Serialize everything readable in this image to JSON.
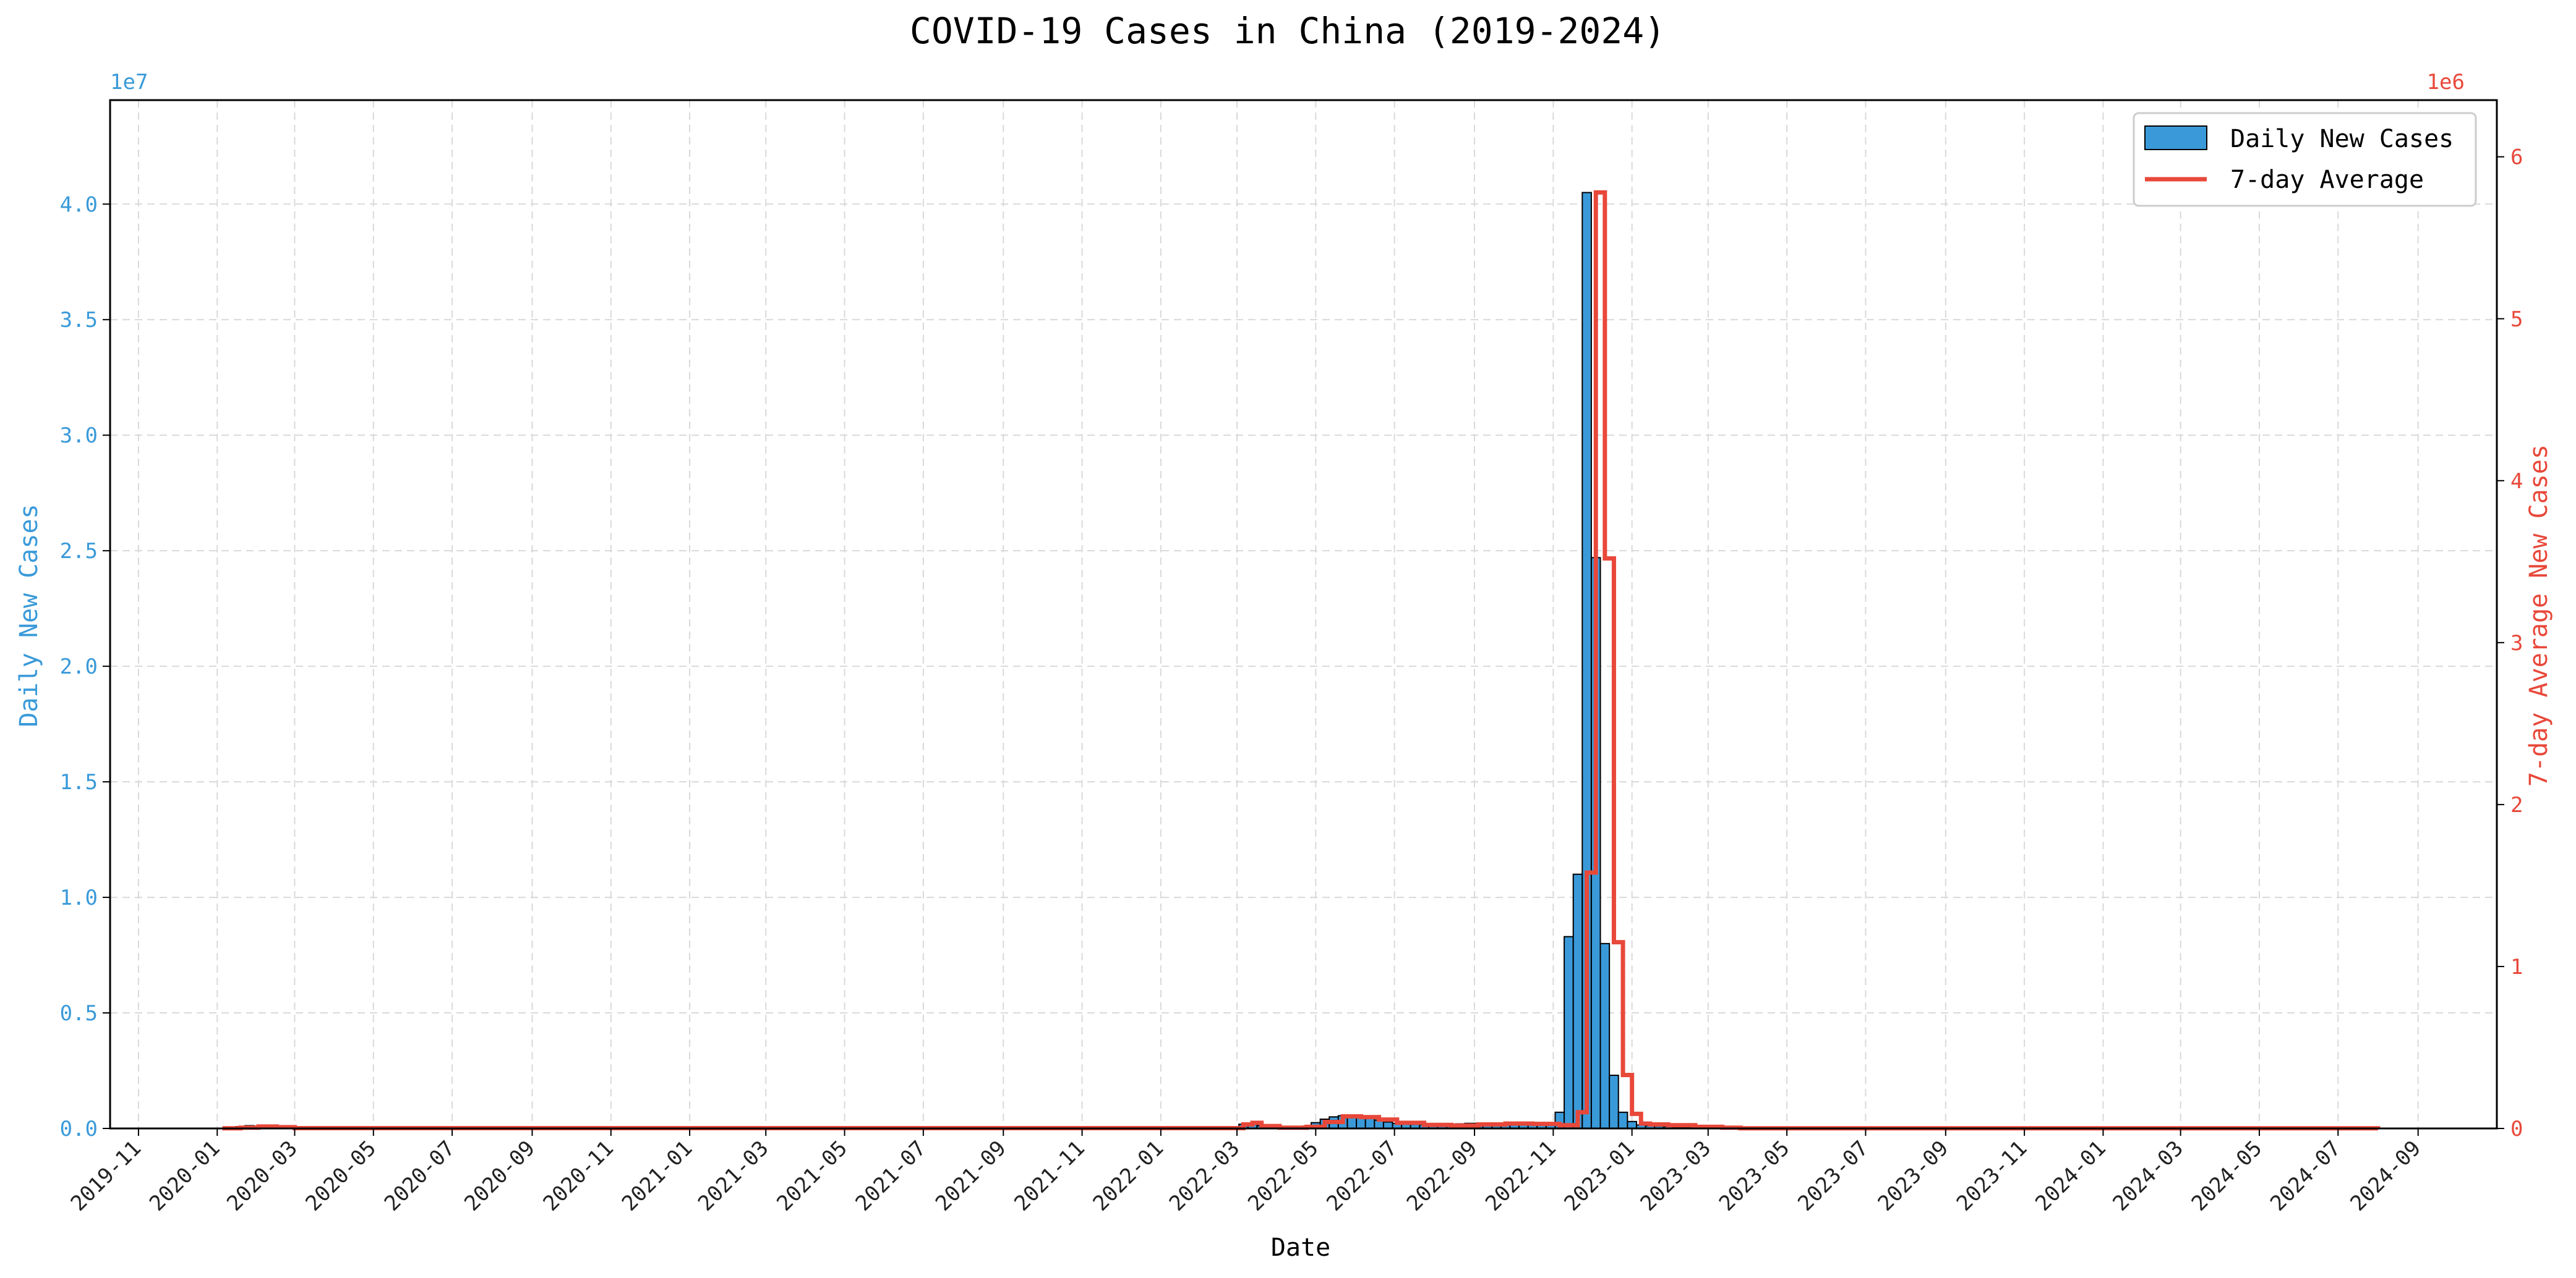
{
  "chart_data": {
    "type": "bar",
    "title": "COVID-19 Cases in China (2019-2024)",
    "xlabel": "Date",
    "ylabel_left": "Daily New Cases",
    "ylabel_right": "7-day Average New Cases",
    "left_multiplier": "1e7",
    "right_multiplier": "1e6",
    "xlim": [
      "2019-10-10",
      "2024-11-01"
    ],
    "ylim_left": [
      0,
      4.45
    ],
    "ylim_right": [
      0,
      6.35
    ],
    "x_ticks": [
      "2019-11",
      "2020-01",
      "2020-03",
      "2020-05",
      "2020-07",
      "2020-09",
      "2020-11",
      "2021-01",
      "2021-03",
      "2021-05",
      "2021-07",
      "2021-09",
      "2021-11",
      "2022-01",
      "2022-03",
      "2022-05",
      "2022-07",
      "2022-09",
      "2022-11",
      "2023-01",
      "2023-03",
      "2023-05",
      "2023-07",
      "2023-09",
      "2023-11",
      "2024-01",
      "2024-03",
      "2024-05",
      "2024-07",
      "2024-09"
    ],
    "y_ticks_left": [
      "0.0",
      "0.5",
      "1.0",
      "1.5",
      "2.0",
      "2.5",
      "3.0",
      "3.5",
      "4.0"
    ],
    "y_ticks_right": [
      "0",
      "1",
      "2",
      "3",
      "4",
      "5",
      "6"
    ],
    "grid": true,
    "legend_position": "top-right",
    "colors": {
      "bars": "#3a9ad9",
      "bar_edge": "#000000",
      "average": "#e8483a",
      "left_axis": "#3a9ad9",
      "right_axis": "#e8483a",
      "grid": "#d9d9d9"
    },
    "series": [
      {
        "name": "Daily New Cases",
        "kind": "bar",
        "axis": "left",
        "unit_scale": "1e7",
        "x": [
          "2020-01-05",
          "2020-01-12",
          "2020-01-19",
          "2020-01-26",
          "2020-02-02",
          "2020-02-09",
          "2020-02-16",
          "2020-02-23",
          "2022-03-06",
          "2022-03-13",
          "2022-03-20",
          "2022-03-27",
          "2022-04-03",
          "2022-04-10",
          "2022-04-17",
          "2022-04-24",
          "2022-05-01",
          "2022-05-08",
          "2022-05-15",
          "2022-05-22",
          "2022-05-29",
          "2022-06-05",
          "2022-06-12",
          "2022-06-19",
          "2022-06-26",
          "2022-07-03",
          "2022-07-10",
          "2022-07-17",
          "2022-07-24",
          "2022-07-31",
          "2022-08-07",
          "2022-08-14",
          "2022-08-21",
          "2022-08-28",
          "2022-09-04",
          "2022-09-11",
          "2022-09-18",
          "2022-09-25",
          "2022-10-02",
          "2022-10-09",
          "2022-10-16",
          "2022-10-23",
          "2022-10-30",
          "2022-11-06",
          "2022-11-13",
          "2022-11-20",
          "2022-11-27",
          "2022-12-04",
          "2022-12-11",
          "2022-12-18",
          "2022-12-25",
          "2023-01-01",
          "2023-01-08",
          "2023-01-15",
          "2023-01-22",
          "2023-01-29",
          "2023-02-05",
          "2023-02-12",
          "2023-02-19",
          "2023-02-26",
          "2023-03-05",
          "2023-03-12",
          "2023-03-19",
          "2023-03-26"
        ],
        "values": [
          0.001,
          0.003,
          0.008,
          0.012,
          0.01,
          0.006,
          0.003,
          0.001,
          0.018,
          0.022,
          0.012,
          0.006,
          0.004,
          0.003,
          0.003,
          0.01,
          0.025,
          0.04,
          0.05,
          0.055,
          0.055,
          0.05,
          0.045,
          0.036,
          0.028,
          0.022,
          0.02,
          0.018,
          0.016,
          0.016,
          0.015,
          0.018,
          0.02,
          0.022,
          0.022,
          0.022,
          0.024,
          0.024,
          0.022,
          0.02,
          0.018,
          0.016,
          0.016,
          0.07,
          0.83,
          1.1,
          4.05,
          2.47,
          0.8,
          0.23,
          0.07,
          0.03,
          0.015,
          0.012,
          0.01,
          0.008,
          0.006,
          0.004,
          0.002,
          0.001,
          0.001,
          0.001,
          0.0,
          0.0
        ]
      },
      {
        "name": "7-day Average",
        "kind": "step-line",
        "axis": "right",
        "unit_scale": "1e6",
        "x": [
          "2020-01-05",
          "2020-01-19",
          "2020-02-02",
          "2020-02-16",
          "2020-03-01",
          "2022-02-27",
          "2022-03-06",
          "2022-03-13",
          "2022-03-20",
          "2022-04-03",
          "2022-04-24",
          "2022-05-08",
          "2022-05-22",
          "2022-06-05",
          "2022-06-19",
          "2022-07-03",
          "2022-07-24",
          "2022-08-14",
          "2022-09-04",
          "2022-09-25",
          "2022-10-16",
          "2022-11-06",
          "2022-11-20",
          "2022-11-27",
          "2022-12-04",
          "2022-12-11",
          "2022-12-18",
          "2022-12-25",
          "2023-01-01",
          "2023-01-08",
          "2023-01-15",
          "2023-01-29",
          "2023-02-19",
          "2023-03-12",
          "2023-03-26",
          "2024-08-01"
        ],
        "values": [
          0.001,
          0.005,
          0.012,
          0.008,
          0.002,
          0.002,
          0.025,
          0.035,
          0.015,
          0.005,
          0.01,
          0.04,
          0.075,
          0.07,
          0.055,
          0.035,
          0.022,
          0.018,
          0.025,
          0.03,
          0.028,
          0.02,
          0.1,
          1.58,
          5.78,
          3.52,
          1.15,
          0.33,
          0.09,
          0.03,
          0.025,
          0.02,
          0.01,
          0.005,
          0.001,
          0.0
        ]
      }
    ]
  }
}
